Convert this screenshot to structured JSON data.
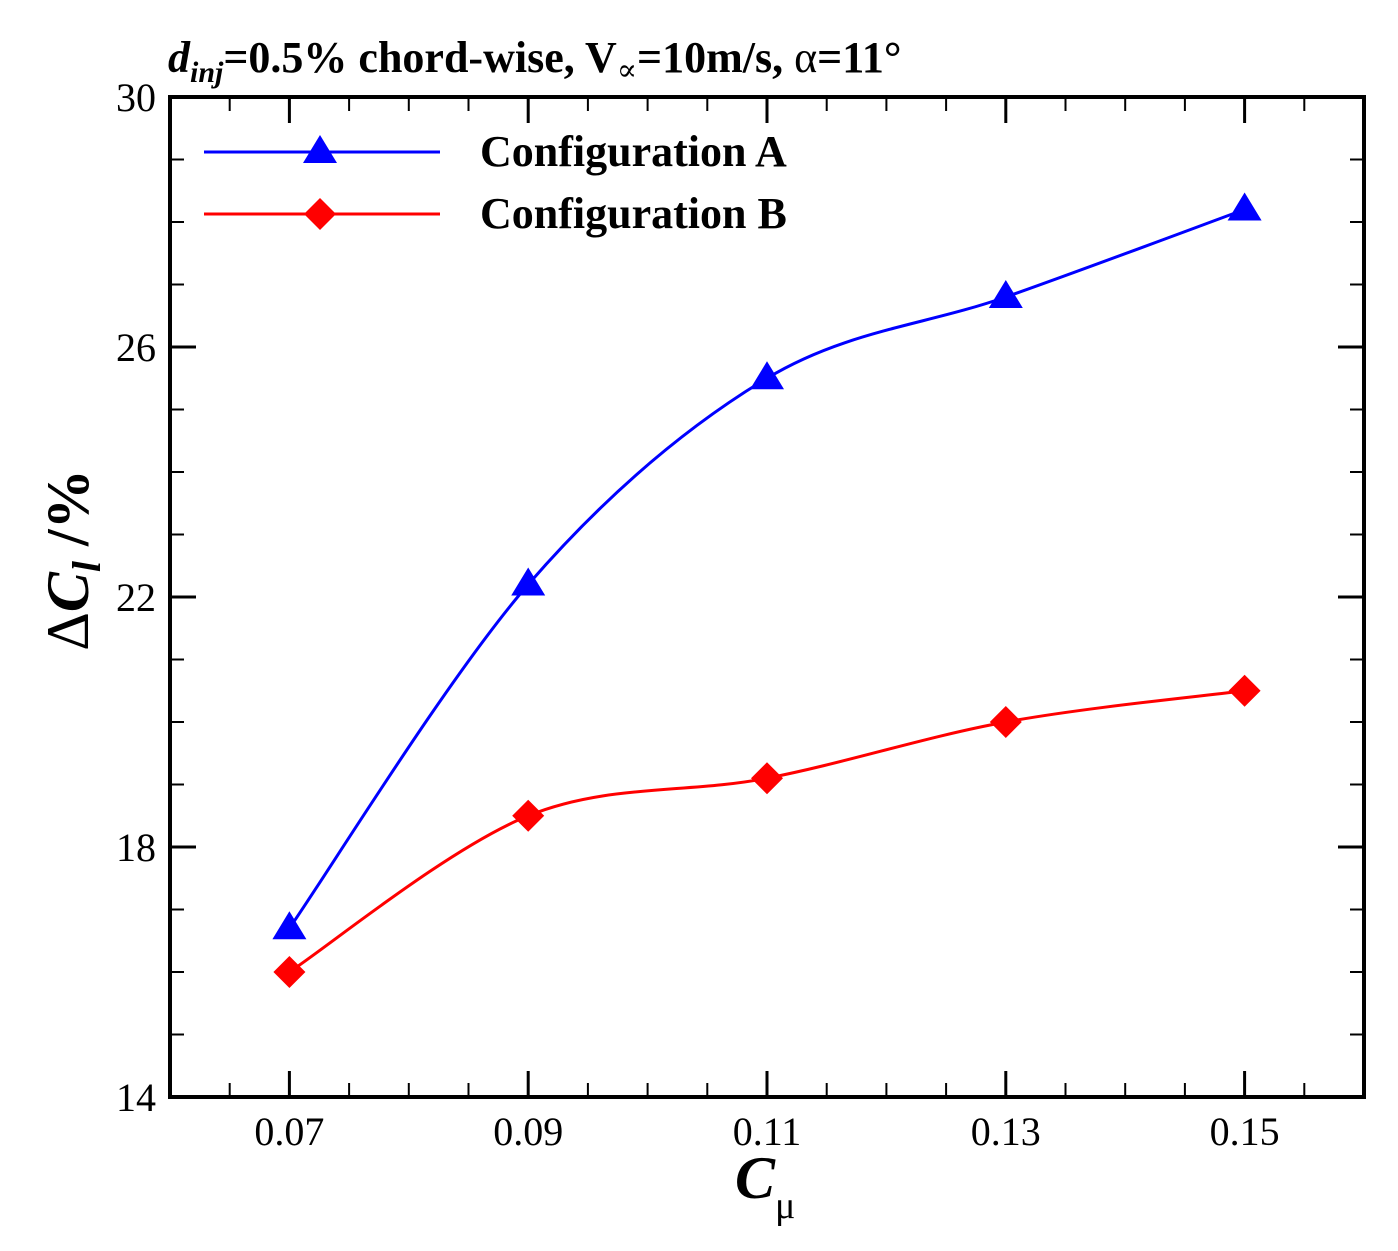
{
  "chart_data": {
    "type": "line",
    "title": {
      "d": "d",
      "inj": "inj",
      "part1": "=0.5% chord-wise, V",
      "infty": "∝",
      "part2": "=10m/s, ",
      "alpha": "α",
      "part3": "=11°"
    },
    "xlabel": {
      "main": "C",
      "sub": "μ"
    },
    "ylabel": {
      "delta": "Δ",
      "main": "C",
      "sub": "l",
      "unit": " /%"
    },
    "x": [
      0.07,
      0.09,
      0.11,
      0.13,
      0.15
    ],
    "xlim": [
      0.06,
      0.16
    ],
    "ylim": [
      14,
      30
    ],
    "xticks": [
      "0.07",
      "0.09",
      "0.11",
      "0.13",
      "0.15"
    ],
    "yticks": [
      "14",
      "18",
      "22",
      "26",
      "30"
    ],
    "legend_position": "top-left",
    "series": [
      {
        "name": "Configuration A",
        "values": [
          16.7,
          22.2,
          25.5,
          26.8,
          28.2
        ],
        "color": "#0000ff",
        "marker": "triangle"
      },
      {
        "name": "Configuration B",
        "values": [
          16.0,
          18.5,
          19.1,
          20.0,
          20.5
        ],
        "color": "#ff0000",
        "marker": "diamond"
      }
    ]
  }
}
